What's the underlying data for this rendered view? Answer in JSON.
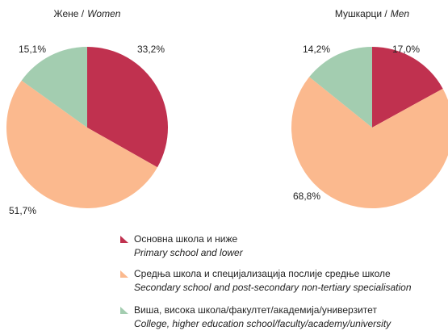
{
  "chart_data": [
    {
      "type": "pie",
      "title": {
        "local": "Жене /",
        "english": "Women"
      },
      "values": [
        33.2,
        51.7,
        15.1
      ],
      "value_labels": [
        "33,2%",
        "51,7%",
        "15,1%"
      ]
    },
    {
      "type": "pie",
      "title": {
        "local": "Мушкарци /",
        "english": "Men"
      },
      "values": [
        17.0,
        68.8,
        14.2
      ],
      "value_labels": [
        "17,0%",
        "68,8%",
        "14,2%"
      ]
    }
  ],
  "legend": {
    "items": [
      {
        "name": "Основна школа и ниже",
        "name_en": "Primary school and lower",
        "color": "#c0314f"
      },
      {
        "name": "Средња школа и специјализација послије средње школе",
        "name_en": "Secondary school and post-secondary non-tertiary specialisation",
        "color": "#fbb98e"
      },
      {
        "name": "Виша, висока школа/факултет/академија/универзитет",
        "name_en": "College, higher education school/faculty/academy/university",
        "color": "#a3cdb0"
      }
    ]
  }
}
